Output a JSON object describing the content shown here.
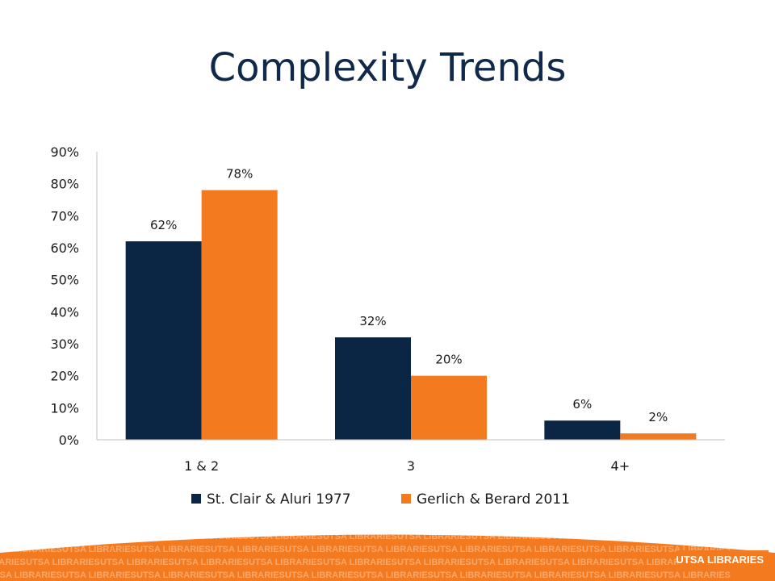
{
  "slide": {
    "title": "Complexity Trends"
  },
  "colors": {
    "title": "#10294a",
    "series_navy": "#0b2545",
    "series_orange": "#f47a20",
    "footer_orange": "#f47a20",
    "footer_text": "#ffffff"
  },
  "footer": {
    "watermark_text": "UTSA LIBRARIES",
    "logo_text": "UTSA LIBRARIES"
  },
  "chart_data": {
    "type": "bar",
    "categories": [
      "1 & 2",
      "3",
      "4+"
    ],
    "series": [
      {
        "name": "St. Clair & Aluri 1977",
        "values": [
          62,
          32,
          6
        ],
        "labels": [
          "62%",
          "32%",
          "6%"
        ],
        "color": "#0b2545"
      },
      {
        "name": "Gerlich & Berard 2011",
        "values": [
          78,
          20,
          2
        ],
        "labels": [
          "78%",
          "20%",
          "2%"
        ],
        "color": "#f47a20"
      }
    ],
    "ylim": [
      0,
      90
    ],
    "yticks": [
      0,
      10,
      20,
      30,
      40,
      50,
      60,
      70,
      80,
      90
    ],
    "ytick_labels": [
      "0%",
      "10%",
      "20%",
      "30%",
      "40%",
      "50%",
      "60%",
      "70%",
      "80%",
      "90%"
    ],
    "grid": false,
    "legend_position": "bottom",
    "xlabel": "",
    "ylabel": "",
    "title": ""
  }
}
